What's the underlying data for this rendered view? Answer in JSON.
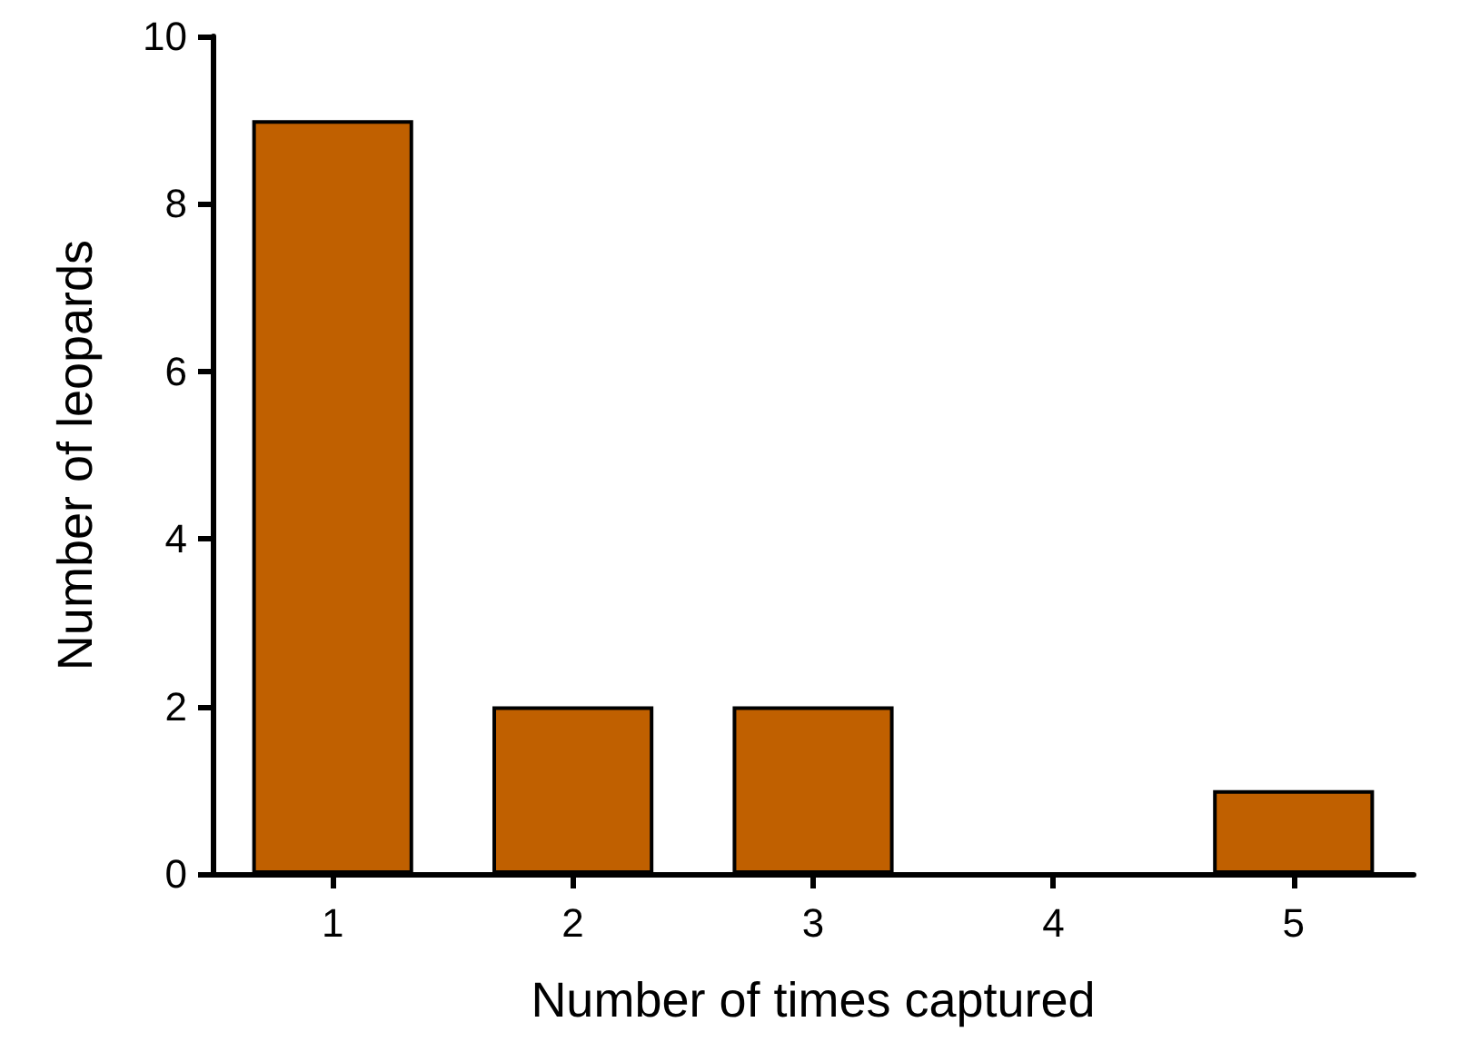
{
  "chart_data": {
    "type": "bar",
    "xlabel": "Number of times captured",
    "ylabel": "Number of leopards",
    "categories": [
      "1",
      "2",
      "3",
      "4",
      "5"
    ],
    "values": [
      9,
      2,
      2,
      0,
      1
    ],
    "color": "#c06000",
    "ylim": [
      0,
      10
    ],
    "yticks": [
      0,
      2,
      4,
      6,
      8,
      10
    ]
  }
}
